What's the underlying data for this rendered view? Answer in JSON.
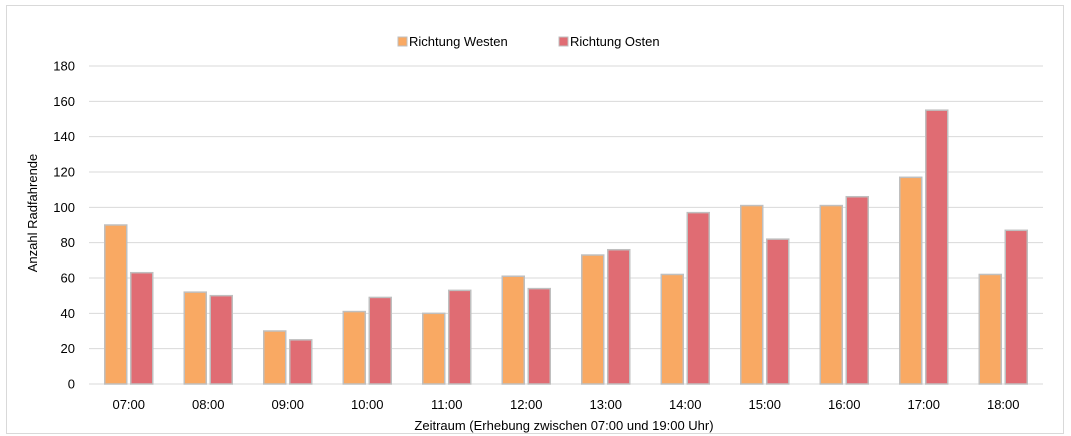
{
  "chart_data": {
    "type": "bar",
    "categories": [
      "07:00",
      "08:00",
      "09:00",
      "10:00",
      "11:00",
      "12:00",
      "13:00",
      "14:00",
      "15:00",
      "16:00",
      "17:00",
      "18:00"
    ],
    "series": [
      {
        "name": "Richtung Westen",
        "color": "#f9a963",
        "values": [
          90,
          52,
          30,
          41,
          40,
          61,
          73,
          62,
          101,
          101,
          117,
          62
        ]
      },
      {
        "name": "Richtung Osten",
        "color": "#e06c73",
        "values": [
          63,
          50,
          25,
          49,
          53,
          54,
          76,
          97,
          82,
          106,
          155,
          87
        ]
      }
    ],
    "title": "",
    "xlabel": "Zeitraum (Erhebung zwischen 07:00 und 19:00 Uhr)",
    "ylabel": "Anzahl Radfahrende",
    "ylim": [
      0,
      180
    ],
    "yticks": [
      0,
      20,
      40,
      60,
      80,
      100,
      120,
      140,
      160,
      180
    ],
    "grid": true,
    "legend_position": "top-center",
    "bar_border_color": "#bfbfbf",
    "grid_color": "#d9d9d9",
    "axis_color": "#d9d9d9"
  }
}
